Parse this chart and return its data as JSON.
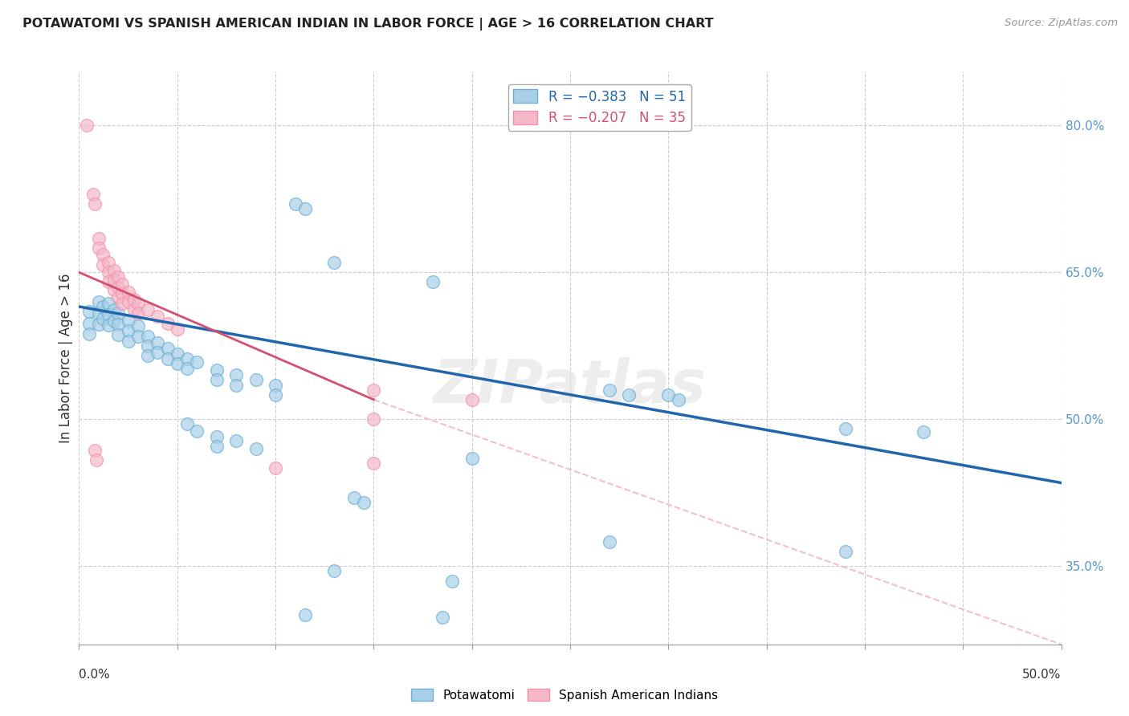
{
  "title": "POTAWATOMI VS SPANISH AMERICAN INDIAN IN LABOR FORCE | AGE > 16 CORRELATION CHART",
  "source": "Source: ZipAtlas.com",
  "ylabel": "In Labor Force | Age > 16",
  "right_yticks": [
    "80.0%",
    "65.0%",
    "50.0%",
    "35.0%"
  ],
  "right_ytick_vals": [
    0.8,
    0.65,
    0.5,
    0.35
  ],
  "xlim": [
    0.0,
    0.5
  ],
  "ylim": [
    0.27,
    0.855
  ],
  "blue_scatter": [
    [
      0.005,
      0.61
    ],
    [
      0.005,
      0.598
    ],
    [
      0.005,
      0.587
    ],
    [
      0.01,
      0.62
    ],
    [
      0.01,
      0.608
    ],
    [
      0.01,
      0.597
    ],
    [
      0.012,
      0.615
    ],
    [
      0.012,
      0.603
    ],
    [
      0.015,
      0.618
    ],
    [
      0.015,
      0.607
    ],
    [
      0.015,
      0.596
    ],
    [
      0.018,
      0.612
    ],
    [
      0.018,
      0.6
    ],
    [
      0.02,
      0.608
    ],
    [
      0.02,
      0.597
    ],
    [
      0.02,
      0.586
    ],
    [
      0.025,
      0.6
    ],
    [
      0.025,
      0.59
    ],
    [
      0.025,
      0.58
    ],
    [
      0.03,
      0.595
    ],
    [
      0.03,
      0.585
    ],
    [
      0.035,
      0.585
    ],
    [
      0.035,
      0.575
    ],
    [
      0.035,
      0.565
    ],
    [
      0.04,
      0.578
    ],
    [
      0.04,
      0.568
    ],
    [
      0.045,
      0.572
    ],
    [
      0.045,
      0.562
    ],
    [
      0.05,
      0.567
    ],
    [
      0.05,
      0.557
    ],
    [
      0.055,
      0.562
    ],
    [
      0.055,
      0.552
    ],
    [
      0.06,
      0.558
    ],
    [
      0.07,
      0.55
    ],
    [
      0.07,
      0.54
    ],
    [
      0.08,
      0.545
    ],
    [
      0.08,
      0.535
    ],
    [
      0.09,
      0.54
    ],
    [
      0.1,
      0.535
    ],
    [
      0.1,
      0.525
    ],
    [
      0.055,
      0.495
    ],
    [
      0.06,
      0.488
    ],
    [
      0.07,
      0.482
    ],
    [
      0.07,
      0.472
    ],
    [
      0.08,
      0.478
    ],
    [
      0.09,
      0.47
    ],
    [
      0.11,
      0.72
    ],
    [
      0.115,
      0.715
    ],
    [
      0.13,
      0.66
    ],
    [
      0.18,
      0.64
    ],
    [
      0.27,
      0.53
    ],
    [
      0.28,
      0.525
    ],
    [
      0.3,
      0.525
    ],
    [
      0.305,
      0.52
    ],
    [
      0.39,
      0.49
    ],
    [
      0.43,
      0.487
    ],
    [
      0.39,
      0.365
    ],
    [
      0.14,
      0.42
    ],
    [
      0.145,
      0.415
    ],
    [
      0.2,
      0.46
    ],
    [
      0.13,
      0.345
    ],
    [
      0.19,
      0.335
    ],
    [
      0.115,
      0.3
    ],
    [
      0.185,
      0.298
    ],
    [
      0.27,
      0.375
    ]
  ],
  "pink_scatter": [
    [
      0.004,
      0.8
    ],
    [
      0.007,
      0.73
    ],
    [
      0.008,
      0.72
    ],
    [
      0.01,
      0.685
    ],
    [
      0.01,
      0.675
    ],
    [
      0.012,
      0.668
    ],
    [
      0.012,
      0.658
    ],
    [
      0.015,
      0.66
    ],
    [
      0.015,
      0.65
    ],
    [
      0.015,
      0.64
    ],
    [
      0.018,
      0.652
    ],
    [
      0.018,
      0.642
    ],
    [
      0.018,
      0.632
    ],
    [
      0.02,
      0.645
    ],
    [
      0.02,
      0.635
    ],
    [
      0.02,
      0.625
    ],
    [
      0.022,
      0.638
    ],
    [
      0.022,
      0.628
    ],
    [
      0.022,
      0.618
    ],
    [
      0.025,
      0.63
    ],
    [
      0.025,
      0.62
    ],
    [
      0.028,
      0.622
    ],
    [
      0.028,
      0.612
    ],
    [
      0.03,
      0.618
    ],
    [
      0.03,
      0.608
    ],
    [
      0.035,
      0.612
    ],
    [
      0.04,
      0.605
    ],
    [
      0.045,
      0.598
    ],
    [
      0.05,
      0.592
    ],
    [
      0.008,
      0.468
    ],
    [
      0.009,
      0.458
    ],
    [
      0.15,
      0.53
    ],
    [
      0.2,
      0.52
    ],
    [
      0.15,
      0.5
    ],
    [
      0.1,
      0.45
    ],
    [
      0.15,
      0.455
    ]
  ],
  "blue_color": "#a8cfe8",
  "pink_color": "#f4b8c8",
  "blue_edge_color": "#6baed6",
  "pink_edge_color": "#f48fb1",
  "blue_line_color": "#2166ac",
  "pink_line_color": "#d64f6e",
  "pink_dash_color": "#f4b8c8",
  "watermark": "ZIPatlas",
  "background_color": "#ffffff",
  "grid_color": "#cccccc",
  "blue_regression": [
    0.0,
    0.5,
    0.615,
    0.435
  ],
  "pink_regression_solid": [
    0.0,
    0.15,
    0.65,
    0.52
  ],
  "pink_regression_dash": [
    0.15,
    0.5,
    0.52,
    0.27
  ]
}
